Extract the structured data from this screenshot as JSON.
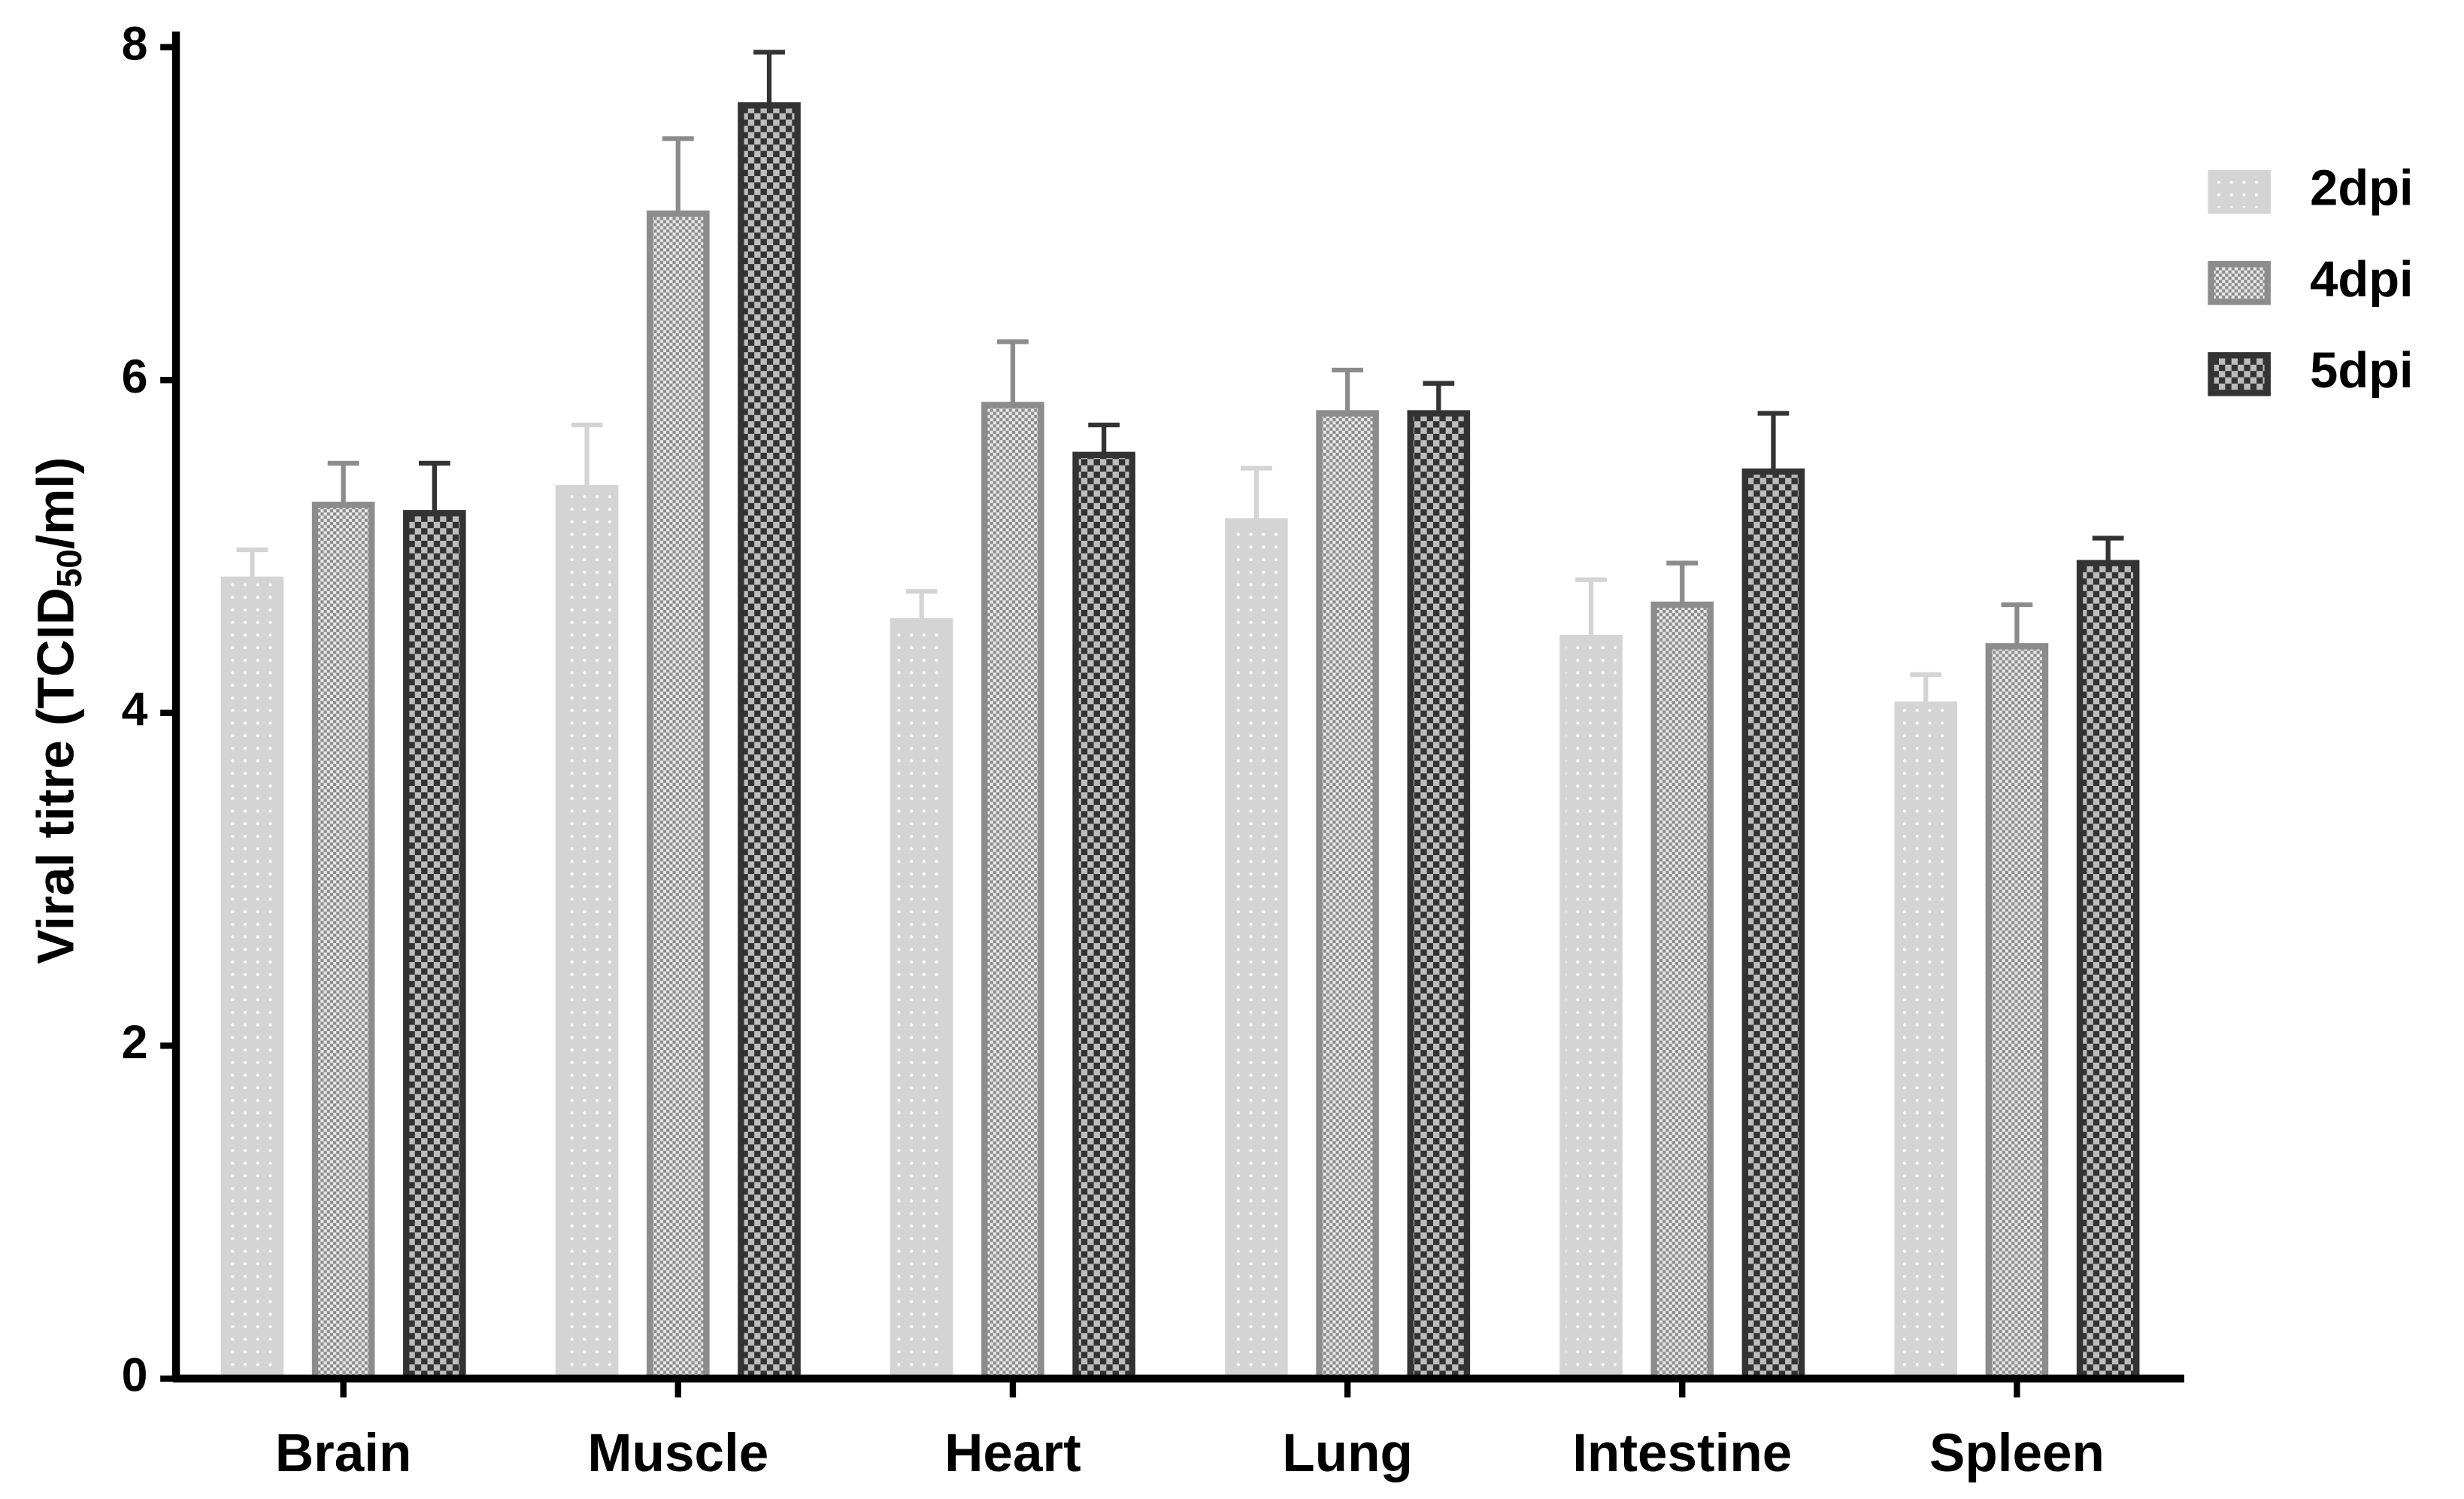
{
  "chart_data": {
    "type": "bar",
    "y_label": {
      "text": "Viral titre (TCID",
      "subscript": "50",
      "suffix": "/ml)"
    },
    "categories": [
      "Brain",
      "Muscle",
      "Heart",
      "Lung",
      "Intestine",
      "Spleen"
    ],
    "series": [
      {
        "name": "2dpi",
        "color": "#d4d4d4",
        "values": [
          4.8,
          5.35,
          4.55,
          5.15,
          4.45,
          4.05
        ],
        "errors": [
          0.18,
          0.38,
          0.18,
          0.32,
          0.35,
          0.18
        ]
      },
      {
        "name": "4dpi",
        "color": "#8c8c8c",
        "values": [
          5.25,
          7.0,
          5.85,
          5.8,
          4.65,
          4.4
        ],
        "errors": [
          0.25,
          0.45,
          0.38,
          0.26,
          0.25,
          0.25
        ]
      },
      {
        "name": "5dpi",
        "color": "#333333",
        "values": [
          5.2,
          7.65,
          5.55,
          5.8,
          5.45,
          4.9
        ],
        "errors": [
          0.3,
          0.32,
          0.18,
          0.18,
          0.35,
          0.15
        ]
      }
    ],
    "ylim": [
      0,
      8
    ],
    "yticks": [
      0,
      2,
      4,
      6,
      8
    ],
    "grid": false,
    "legend": "right"
  }
}
